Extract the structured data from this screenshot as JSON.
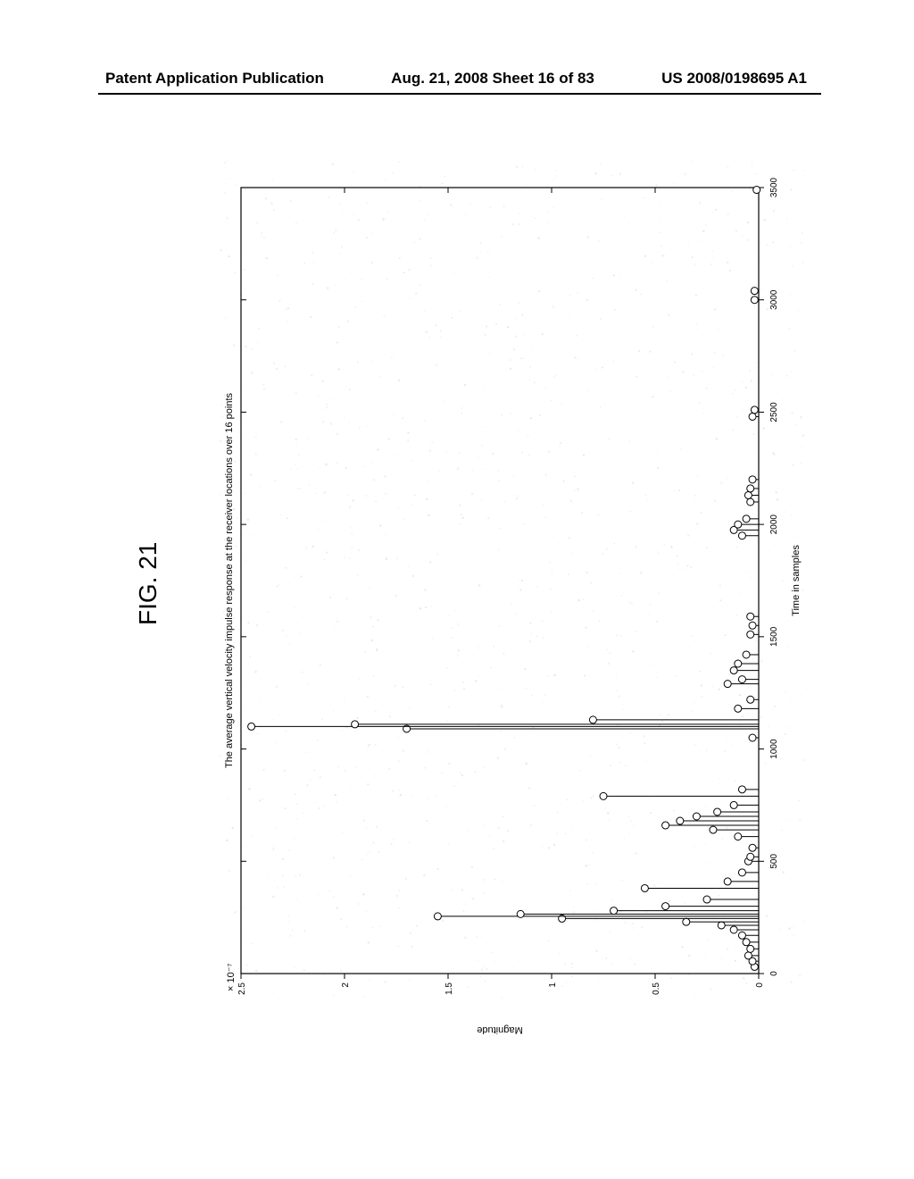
{
  "header": {
    "left": "Patent Application Publication",
    "center": "Aug. 21, 2008  Sheet 16 of 83",
    "right": "US 2008/0198695 A1"
  },
  "figure": {
    "label": "FIG. 21",
    "plot": {
      "type": "stem",
      "title": "The average vertical velocity impulse response at the receiver locations over 16 points",
      "xlabel": "Time in samples",
      "ylabel": "Magnitude",
      "y_scale_label": "× 10⁻⁷",
      "xlim": [
        0,
        3500
      ],
      "ylim": [
        0,
        2.5
      ],
      "xticks": [
        0,
        500,
        1000,
        1500,
        2000,
        2500,
        3000,
        3500
      ],
      "yticks": [
        0,
        0.5,
        1,
        1.5,
        2,
        2.5
      ],
      "ytick_labels": [
        "0",
        "0.5",
        "1",
        "1.5",
        "2",
        "2.5"
      ],
      "title_fontsize": 11,
      "label_fontsize": 11,
      "tick_fontsize": 10,
      "axis_color": "#000000",
      "stem_color": "#000000",
      "marker_color": "#000000",
      "marker_face": "#ffffff",
      "marker_style": "circle",
      "marker_size": 4,
      "line_width": 1,
      "background_color": "#ffffff",
      "noise_color": "#b8b8b8",
      "noise_opacity": 0.35,
      "data": [
        {
          "x": 30,
          "y": 0.02
        },
        {
          "x": 55,
          "y": 0.03
        },
        {
          "x": 80,
          "y": 0.05
        },
        {
          "x": 110,
          "y": 0.04
        },
        {
          "x": 140,
          "y": 0.06
        },
        {
          "x": 170,
          "y": 0.08
        },
        {
          "x": 195,
          "y": 0.12
        },
        {
          "x": 215,
          "y": 0.18
        },
        {
          "x": 230,
          "y": 0.35
        },
        {
          "x": 245,
          "y": 0.95
        },
        {
          "x": 255,
          "y": 1.55
        },
        {
          "x": 265,
          "y": 1.15
        },
        {
          "x": 280,
          "y": 0.7
        },
        {
          "x": 300,
          "y": 0.45
        },
        {
          "x": 330,
          "y": 0.25
        },
        {
          "x": 380,
          "y": 0.55
        },
        {
          "x": 410,
          "y": 0.15
        },
        {
          "x": 450,
          "y": 0.08
        },
        {
          "x": 500,
          "y": 0.05
        },
        {
          "x": 520,
          "y": 0.04
        },
        {
          "x": 560,
          "y": 0.03
        },
        {
          "x": 610,
          "y": 0.1
        },
        {
          "x": 640,
          "y": 0.22
        },
        {
          "x": 660,
          "y": 0.45
        },
        {
          "x": 680,
          "y": 0.38
        },
        {
          "x": 700,
          "y": 0.3
        },
        {
          "x": 720,
          "y": 0.2
        },
        {
          "x": 750,
          "y": 0.12
        },
        {
          "x": 790,
          "y": 0.75
        },
        {
          "x": 820,
          "y": 0.08
        },
        {
          "x": 1050,
          "y": 0.03
        },
        {
          "x": 1090,
          "y": 1.7
        },
        {
          "x": 1100,
          "y": 2.45
        },
        {
          "x": 1110,
          "y": 1.95
        },
        {
          "x": 1130,
          "y": 0.8
        },
        {
          "x": 1180,
          "y": 0.1
        },
        {
          "x": 1220,
          "y": 0.04
        },
        {
          "x": 1290,
          "y": 0.15
        },
        {
          "x": 1310,
          "y": 0.08
        },
        {
          "x": 1350,
          "y": 0.12
        },
        {
          "x": 1380,
          "y": 0.1
        },
        {
          "x": 1420,
          "y": 0.06
        },
        {
          "x": 1510,
          "y": 0.04
        },
        {
          "x": 1550,
          "y": 0.03
        },
        {
          "x": 1590,
          "y": 0.04
        },
        {
          "x": 1950,
          "y": 0.08
        },
        {
          "x": 1975,
          "y": 0.12
        },
        {
          "x": 2000,
          "y": 0.1
        },
        {
          "x": 2025,
          "y": 0.06
        },
        {
          "x": 2100,
          "y": 0.04
        },
        {
          "x": 2130,
          "y": 0.05
        },
        {
          "x": 2160,
          "y": 0.04
        },
        {
          "x": 2200,
          "y": 0.03
        },
        {
          "x": 2480,
          "y": 0.03
        },
        {
          "x": 2510,
          "y": 0.02
        },
        {
          "x": 3000,
          "y": 0.02
        },
        {
          "x": 3040,
          "y": 0.02
        },
        {
          "x": 3490,
          "y": 0.01
        }
      ]
    }
  }
}
